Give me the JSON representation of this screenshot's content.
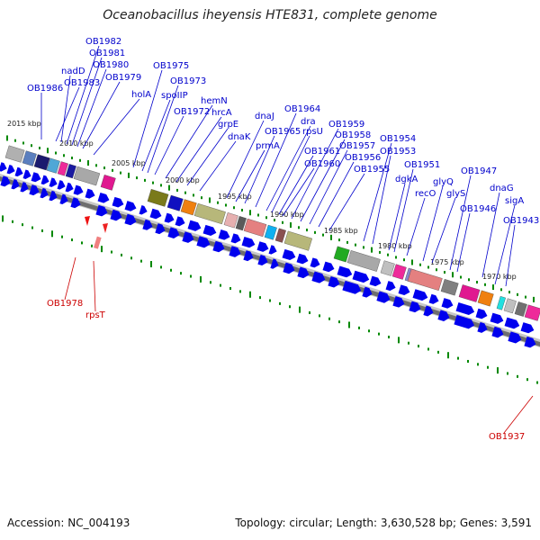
{
  "title": "Oceanobacillus iheyensis HTE831, complete genome",
  "footer": {
    "accession": "Accession: NC_004193",
    "stats": "Topology: circular; Length: 3,630,528 bp; Genes: 3,591"
  },
  "colors": {
    "forward_gene": "#0000ee",
    "reverse_gene": "#e00000",
    "backbone": "#777777",
    "tick": "#008800",
    "label_blue": "#0000cc",
    "label_red": "#cc0000"
  },
  "kbp_ticks": [
    "2015 kbp",
    "2010 kbp",
    "2005 kbp",
    "2000 kbp",
    "1995 kbp",
    "1990 kbp",
    "1985 kbp",
    "1980 kbp",
    "1975 kbp",
    "1970 kbp"
  ],
  "gene_labels": [
    "OB1986",
    "OB1983",
    "nadD",
    "OB1982",
    "OB1981",
    "OB1980",
    "OB1979",
    "holA",
    "OB1975",
    "spoIIP",
    "OB1973",
    "OB1972",
    "hemN",
    "hrcA",
    "grpE",
    "dnaK",
    "dnaJ",
    "prmA",
    "OB1965",
    "OB1964",
    "dra",
    "rpsU",
    "OB1961",
    "OB1960",
    "OB1959",
    "OB1958",
    "OB1957",
    "OB1956",
    "OB1955",
    "OB1954",
    "OB1953",
    "dgkA",
    "OB1951",
    "recO",
    "glyQ",
    "glyS",
    "OB1947",
    "OB1946",
    "dnaG",
    "sigA",
    "OB1943"
  ],
  "reverse_labels": [
    "OB1978",
    "rpsT",
    "OB1937"
  ]
}
